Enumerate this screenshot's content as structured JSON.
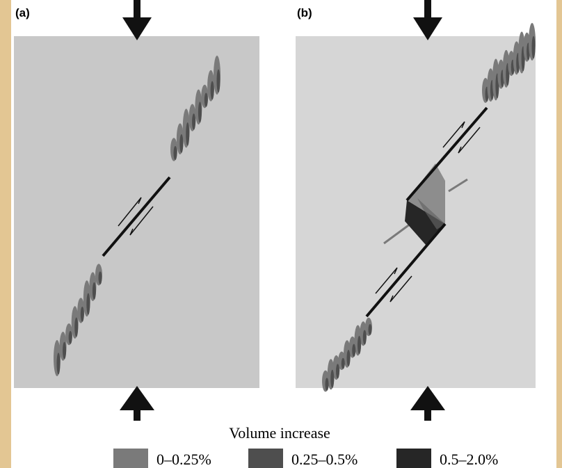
{
  "panels": [
    {
      "label": "(a)"
    },
    {
      "label": "(b)"
    }
  ],
  "legend": {
    "title": "Volume increase",
    "items": [
      {
        "label": "0–0.25%",
        "color": "#7a7a7a"
      },
      {
        "label": "0.25–0.5%",
        "color": "#4e4e4e"
      },
      {
        "label": "0.5–2.0%",
        "color": "#262626"
      }
    ]
  }
}
